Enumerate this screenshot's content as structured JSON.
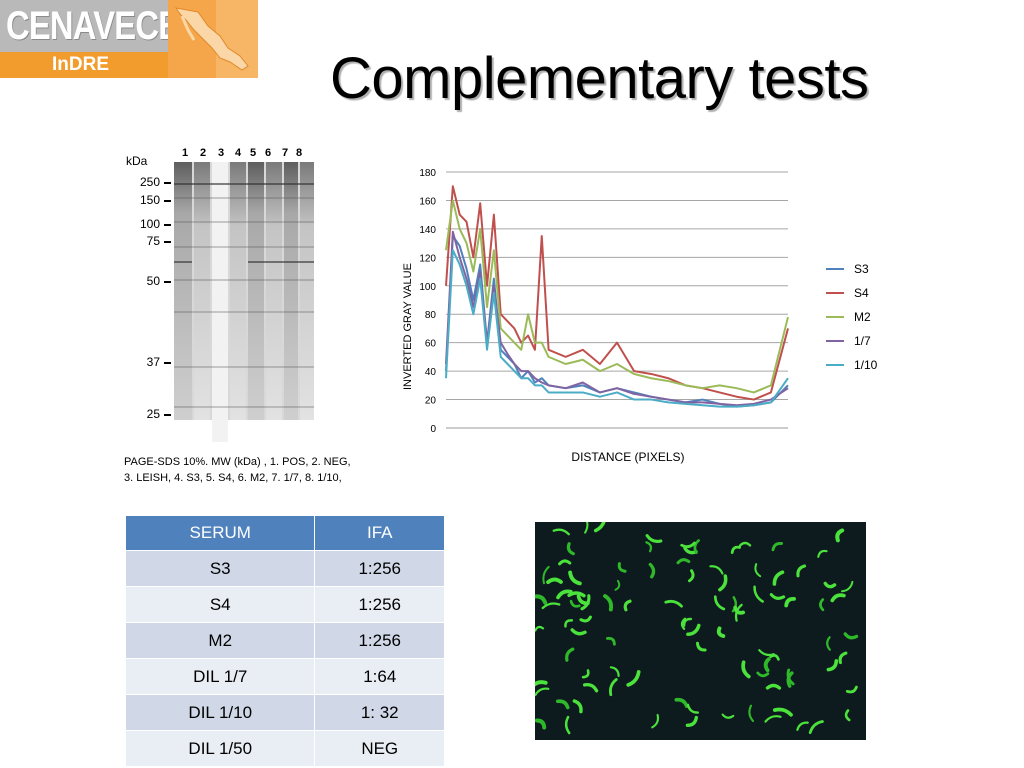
{
  "logo": {
    "name": "CENAVECE",
    "sub": "InDRE"
  },
  "title": "Complementary tests",
  "gel": {
    "unit_label": "kDa",
    "lanes": [
      "1",
      "2",
      "3",
      "4",
      "5",
      "6",
      "7",
      "8"
    ],
    "markers": [
      "250",
      "150",
      "100",
      "75",
      "50",
      "37",
      "25"
    ],
    "caption": "PAGE-SDS 10%. MW (kDa) , 1. POS, 2. NEG, 3. LEISH, 4. S3, 5. S4, 6. M2, 7. 1/7, 8. 1/10,"
  },
  "chart_data": {
    "type": "line",
    "xlabel": "DISTANCE  (PIXELS)",
    "ylabel": "INVERTED GRAY VALUE",
    "ylim": [
      0,
      180
    ],
    "yticks": [
      "0",
      "20",
      "40",
      "60",
      "80",
      "100",
      "120",
      "140",
      "160",
      "180"
    ],
    "grid": true,
    "legend_position": "right",
    "x": [
      0,
      2,
      4,
      6,
      8,
      10,
      12,
      14,
      16,
      18,
      20,
      22,
      24,
      26,
      28,
      30,
      35,
      40,
      45,
      50,
      55,
      60,
      65,
      70,
      75,
      80,
      85,
      90,
      95,
      100
    ],
    "series": [
      {
        "name": "S3",
        "color": "#4f81bd",
        "values": [
          40,
          135,
          128,
          112,
          90,
          115,
          60,
          105,
          55,
          50,
          45,
          35,
          40,
          32,
          35,
          30,
          28,
          30,
          25,
          28,
          25,
          22,
          20,
          18,
          20,
          17,
          15,
          16,
          18,
          30
        ]
      },
      {
        "name": "S4",
        "color": "#c0504d",
        "values": [
          100,
          170,
          150,
          145,
          120,
          158,
          100,
          150,
          80,
          75,
          70,
          60,
          65,
          55,
          135,
          55,
          50,
          55,
          45,
          60,
          40,
          38,
          35,
          30,
          28,
          25,
          22,
          20,
          25,
          70
        ]
      },
      {
        "name": "M2",
        "color": "#9bbb59",
        "values": [
          125,
          160,
          140,
          130,
          110,
          140,
          85,
          125,
          70,
          65,
          60,
          55,
          80,
          60,
          60,
          50,
          45,
          48,
          40,
          45,
          38,
          35,
          33,
          30,
          28,
          30,
          28,
          25,
          30,
          78
        ]
      },
      {
        "name": "1/7",
        "color": "#8064a2",
        "values": [
          45,
          138,
          120,
          105,
          85,
          110,
          60,
          100,
          60,
          52,
          45,
          40,
          40,
          35,
          32,
          30,
          28,
          32,
          25,
          28,
          24,
          22,
          20,
          18,
          18,
          17,
          16,
          17,
          20,
          28
        ]
      },
      {
        "name": "1/10",
        "color": "#4bacc6",
        "values": [
          35,
          125,
          115,
          100,
          80,
          105,
          55,
          95,
          50,
          45,
          40,
          35,
          35,
          30,
          30,
          25,
          25,
          25,
          22,
          25,
          20,
          20,
          18,
          17,
          16,
          15,
          15,
          16,
          18,
          35
        ]
      }
    ]
  },
  "table": {
    "headers": [
      "SERUM",
      "IFA"
    ],
    "rows": [
      [
        "S3",
        "1:256"
      ],
      [
        "S4",
        "1:256"
      ],
      [
        "M2",
        "1:256"
      ],
      [
        "DIL 1/7",
        "1:64"
      ],
      [
        "DIL 1/10",
        "1: 32"
      ],
      [
        "DIL 1/50",
        "NEG"
      ]
    ]
  }
}
